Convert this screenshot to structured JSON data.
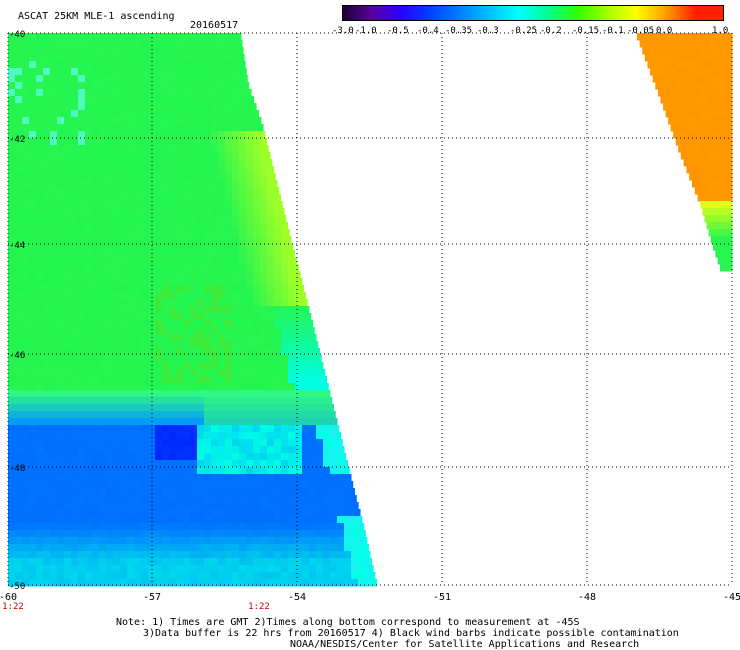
{
  "header": {
    "title": "ASCAT 25KM MLE-1 ascending",
    "date": "20160517"
  },
  "colorbar": {
    "labels": [
      "-3.0",
      "-1.0",
      "-0.5",
      "-0.4",
      "-0.35",
      "-0.3",
      "-0.25",
      "-0.2",
      "-0.15",
      "-0.1",
      "-0.05",
      "0.0",
      "1.0"
    ],
    "colors": [
      "#1a0033",
      "#5a009e",
      "#2a00ff",
      "#0040ff",
      "#0080ff",
      "#00c0ff",
      "#00ffff",
      "#00ff90",
      "#30ff00",
      "#a0ff00",
      "#ffff00",
      "#ffa000",
      "#ff2000"
    ]
  },
  "map": {
    "lat_labels": [
      "-40",
      "-42",
      "-44",
      "-46",
      "-48",
      "-50"
    ],
    "lon_labels": [
      "-60",
      "-57",
      "-54",
      "-51",
      "-48",
      "-45"
    ],
    "time_labels": [
      "1:22",
      "1:22"
    ]
  },
  "notes": {
    "line1": "Note: 1) Times are GMT 2)Times along bottom correspond to measurement at -45S",
    "line2": "3)Data buffer is 22 hrs from 20160517 4) Black wind barbs indicate possible contamination",
    "line3": "NOAA/NESDIS/Center for Satellite Applications and Research"
  }
}
